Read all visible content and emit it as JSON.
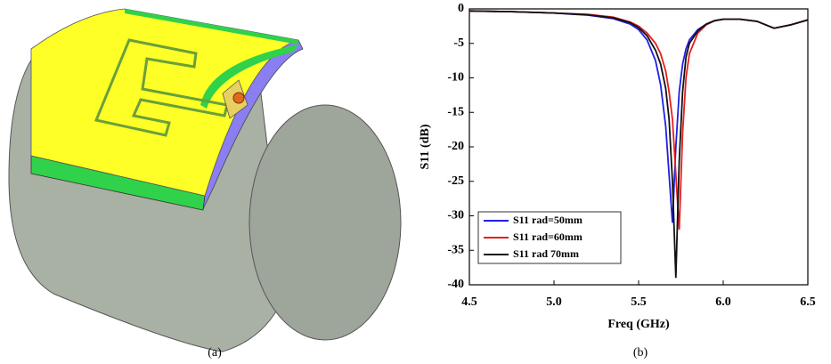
{
  "captions": [
    "(a)",
    "(b)"
  ],
  "chart_data": {
    "type": "line",
    "xlabel": "Freq (GHz)",
    "ylabel": "S11 (dB)",
    "x": [
      4.5,
      4.75,
      5.0,
      5.2,
      5.35,
      5.45,
      5.5,
      5.55,
      5.6,
      5.63,
      5.66,
      5.68,
      5.7,
      5.72,
      5.74,
      5.76,
      5.78,
      5.8,
      5.85,
      5.9,
      5.95,
      6.0,
      6.1,
      6.2,
      6.3,
      6.4,
      6.5
    ],
    "series": [
      {
        "name": "S11 rad=50mm",
        "color": "#1f1fe6",
        "values": [
          -0.3,
          -0.4,
          -0.6,
          -0.9,
          -1.4,
          -2.2,
          -3.0,
          -4.5,
          -7.5,
          -11,
          -17,
          -24,
          -31,
          -20,
          -12,
          -8,
          -5.8,
          -4.5,
          -3,
          -2.2,
          -1.7,
          -1.5,
          -1.5,
          -1.8,
          -2.8,
          -2.3,
          -1.6
        ]
      },
      {
        "name": "S11 rad=60mm",
        "color": "#e61f1f",
        "values": [
          -0.3,
          -0.4,
          -0.6,
          -0.8,
          -1.2,
          -1.9,
          -2.5,
          -3.5,
          -5,
          -6.5,
          -9,
          -12,
          -16,
          -24,
          -32,
          -18,
          -10,
          -6.5,
          -3.5,
          -2.3,
          -1.7,
          -1.5,
          -1.5,
          -1.8,
          -2.8,
          -2.3,
          -1.6
        ]
      },
      {
        "name": "S11 rad 70mm",
        "color": "#111111",
        "values": [
          -0.3,
          -0.4,
          -0.6,
          -0.85,
          -1.3,
          -2.0,
          -2.7,
          -3.9,
          -6,
          -8,
          -11.5,
          -16,
          -25,
          -39,
          -22,
          -12,
          -7,
          -5,
          -3.2,
          -2.2,
          -1.7,
          -1.5,
          -1.5,
          -1.8,
          -2.8,
          -2.3,
          -1.6
        ]
      }
    ],
    "xlim": [
      4.5,
      6.5
    ],
    "xticks": [
      4.5,
      {
        "value": 5,
        "label": "5.0"
      },
      5.5,
      {
        "value": 6,
        "label": "6.0"
      },
      6.5
    ],
    "ylim": [
      -40,
      0
    ],
    "yticks": [
      0,
      -5,
      -10,
      -15,
      -20,
      -25,
      -30,
      -35,
      -40
    ],
    "legend": "lower left"
  }
}
